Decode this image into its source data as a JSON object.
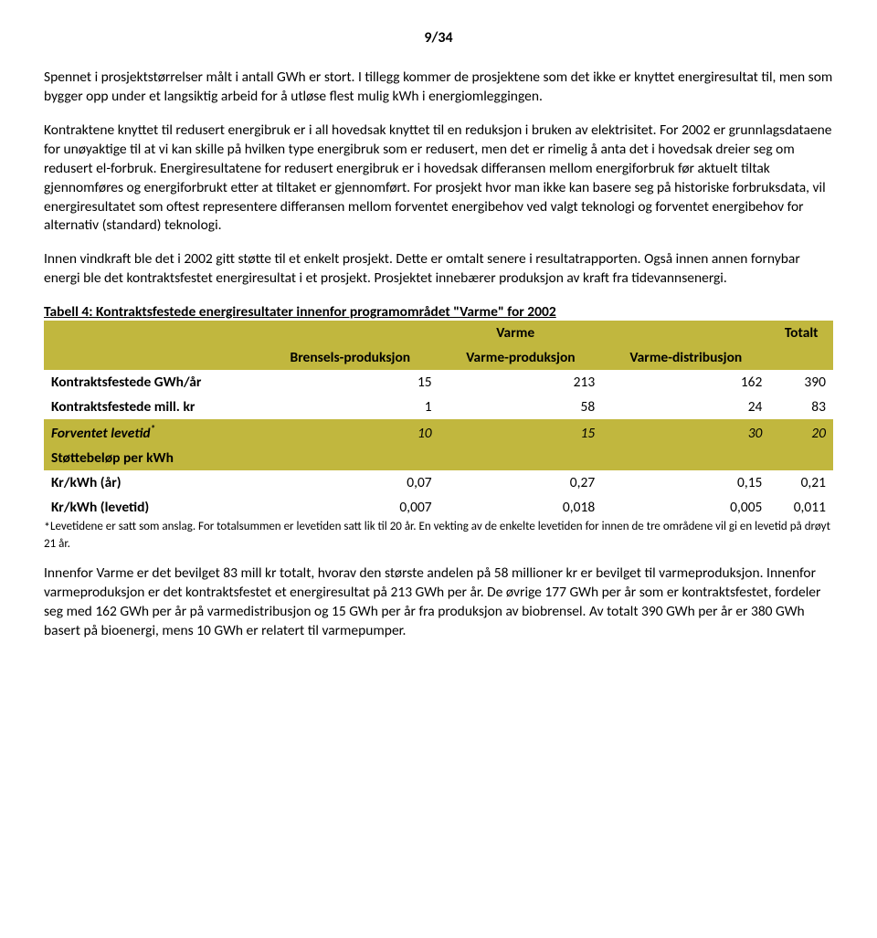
{
  "page_number": "9/34",
  "p1": "Spennet i prosjektstørrelser målt i antall GWh er stort.",
  "p2": "I tillegg kommer de prosjektene som det ikke er knyttet energiresultat til, men som bygger opp under et langsiktig arbeid for å utløse flest mulig kWh i energiomleggingen.",
  "p3": "Kontraktene knyttet til redusert energibruk er i all hovedsak knyttet til en reduksjon i bruken av elektrisitet. For 2002 er grunnlagsdataene for unøyaktige til at vi kan skille på hvilken type energibruk som er redusert, men det er rimelig å anta det i hovedsak dreier seg om redusert el-forbruk. Energiresultatene for redusert energibruk er i hovedsak differansen mellom energiforbruk før aktuelt tiltak gjennomføres og energiforbrukt etter at tiltaket er gjennomført. For prosjekt hvor man ikke kan basere seg på historiske forbruksdata, vil energiresultatet som oftest representere differansen mellom forventet energibehov ved valgt teknologi og forventet energibehov for alternativ (standard) teknologi.",
  "p4": "Innen vindkraft ble det i 2002 gitt støtte til et enkelt prosjekt. Dette er omtalt senere i resultatrapporten. Også innen annen fornybar energi ble det kontraktsfestet energiresultat i et prosjekt. Prosjektet innebærer produksjon av kraft fra tidevannsenergi.",
  "table_caption": "Tabell 4: Kontraktsfestede energiresultater innenfor programområdet \"Varme\" for 2002",
  "table": {
    "colors": {
      "olive": "#c1b73e",
      "white": "#ffffff"
    },
    "header_group_varme": "Varme",
    "header_group_totalt": "Totalt",
    "subheaders": [
      "Brensels-produksjon",
      "Varme-produksjon",
      "Varme-distribusjon"
    ],
    "rows": [
      {
        "label": "Kontraktsfestede GWh/år",
        "vals": [
          "15",
          "213",
          "162",
          "390"
        ],
        "bg": "white",
        "italic": false
      },
      {
        "label": "Kontraktsfestede mill. kr",
        "vals": [
          "1",
          "58",
          "24",
          "83"
        ],
        "bg": "white",
        "italic": false
      },
      {
        "label": "Forventet levetid",
        "star": true,
        "vals": [
          "10",
          "15",
          "30",
          "20"
        ],
        "bg": "olive",
        "italic": true
      },
      {
        "label": "Støttebeløp per kWh",
        "vals": [
          "",
          "",
          "",
          ""
        ],
        "bg": "olive",
        "italic": false
      },
      {
        "label": "Kr/kWh (år)",
        "vals": [
          "0,07",
          "0,27",
          "0,15",
          "0,21"
        ],
        "bg": "white",
        "italic": false
      },
      {
        "label": "Kr/kWh (levetid)",
        "vals": [
          "0,007",
          "0,018",
          "0,005",
          "0,011"
        ],
        "bg": "white",
        "italic": false
      }
    ]
  },
  "footnote": "Levetidene er satt som anslag. For totalsummen er levetiden satt lik til 20 år. En vekting av de enkelte levetiden for innen de tre områdene vil gi en levetid på drøyt 21 år.",
  "p5": "Innenfor Varme er det bevilget 83 mill kr totalt, hvorav den største andelen på 58 millioner kr er bevilget til varmeproduksjon. Innenfor varmeproduksjon er det kontraktsfestet et energiresultat på 213 GWh per år. De øvrige 177 GWh per år som er kontraktsfestet, fordeler seg med 162 GWh per år på varmedistribusjon og 15 GWh per år fra produksjon av biobrensel. Av totalt 390 GWh per år er 380 GWh basert på bioenergi, mens 10 GWh er relatert til varmepumper."
}
